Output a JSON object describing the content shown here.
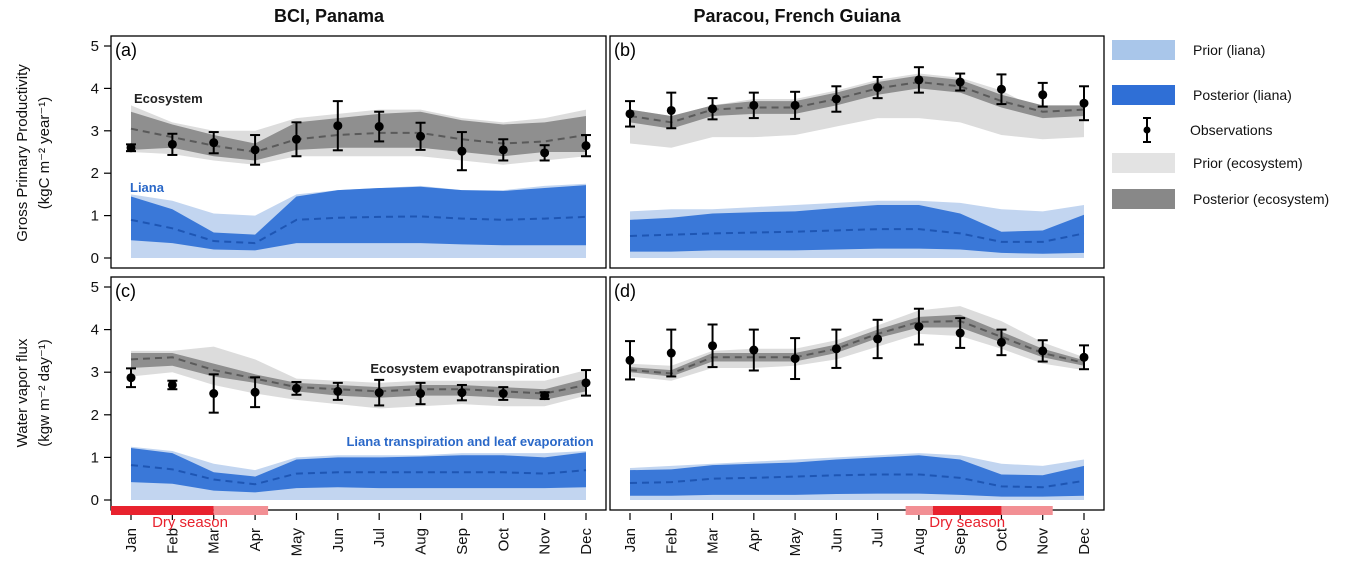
{
  "titles": {
    "left": "BCI, Panama",
    "right": "Paracou, French Guiana"
  },
  "ylabels": {
    "top": {
      "line1": "Gross Primary Productivity",
      "line2": "(kgC m⁻² year⁻¹)"
    },
    "bottom": {
      "line1": "Water vapor flux",
      "line2": "(kgw m⁻² day⁻¹)"
    }
  },
  "months": [
    "Jan",
    "Feb",
    "Mar",
    "Apr",
    "May",
    "Jun",
    "Jul",
    "Aug",
    "Sep",
    "Oct",
    "Nov",
    "Dec"
  ],
  "yticks": [
    "0",
    "1",
    "2",
    "3",
    "4",
    "5"
  ],
  "dry_season_label": "Dry season",
  "legend": [
    {
      "label": "Prior (liana)",
      "color": "#a9c6ea",
      "kind": "fill"
    },
    {
      "label": "Posterior (liana)",
      "color": "#2f6fd6",
      "kind": "fill"
    },
    {
      "label": "Observations",
      "color": "#000000",
      "kind": "errorbar"
    },
    {
      "label": "Prior (ecosystem)",
      "color": "#e3e3e3",
      "kind": "fill"
    },
    {
      "label": "Posterior (ecosystem)",
      "color": "#888888",
      "kind": "fill"
    }
  ],
  "colors": {
    "prior_liana": "#c2d5f0",
    "posterior_liana": "#3a78d8",
    "liana_median": "#1e56b4",
    "prior_eco": "#dcdcdc",
    "posterior_eco": "#8f8f8f",
    "eco_median": "#5a5a5a",
    "obs": "#000000",
    "dry_strong": "#e8222e",
    "dry_light": "#f28f94",
    "liana_text": "#2a68c8"
  },
  "chart_data": [
    {
      "id": "a",
      "panel_label": "(a)",
      "type": "line",
      "site": "BCI, Panama",
      "variable": "GPP",
      "ylim": [
        0,
        5
      ],
      "annotations": [
        {
          "text": "Ecosystem",
          "color": "#222222"
        },
        {
          "text": "Liana",
          "color": "#2a68c8"
        }
      ],
      "obs": {
        "y": [
          2.6,
          2.68,
          2.72,
          2.55,
          2.8,
          3.12,
          3.1,
          2.87,
          2.52,
          2.55,
          2.48,
          2.65
        ],
        "err": [
          0.08,
          0.25,
          0.25,
          0.35,
          0.4,
          0.58,
          0.35,
          0.32,
          0.45,
          0.25,
          0.18,
          0.25
        ]
      },
      "eco_prior": {
        "lo": [
          2.5,
          2.45,
          2.3,
          2.2,
          2.4,
          2.4,
          2.4,
          2.4,
          2.3,
          2.2,
          2.3,
          2.4
        ],
        "hi": [
          3.6,
          3.2,
          3.0,
          3.0,
          3.3,
          3.4,
          3.5,
          3.5,
          3.3,
          3.2,
          3.3,
          3.5
        ]
      },
      "eco_post": {
        "lo": [
          2.55,
          2.6,
          2.4,
          2.3,
          2.55,
          2.6,
          2.6,
          2.6,
          2.5,
          2.4,
          2.5,
          2.5
        ],
        "hi": [
          3.45,
          3.15,
          2.9,
          2.7,
          3.2,
          3.3,
          3.4,
          3.45,
          3.25,
          3.15,
          3.2,
          3.35
        ]
      },
      "eco_median": [
        3.05,
        2.85,
        2.65,
        2.5,
        2.8,
        2.9,
        2.95,
        2.95,
        2.8,
        2.7,
        2.75,
        2.9
      ],
      "liana_prior": {
        "lo": [
          0.0,
          0.0,
          0.0,
          0.0,
          0.0,
          0.0,
          0.0,
          0.0,
          0.0,
          0.0,
          0.0,
          0.0
        ],
        "hi": [
          1.5,
          1.35,
          1.05,
          1.0,
          1.5,
          1.6,
          1.65,
          1.7,
          1.6,
          1.6,
          1.7,
          1.75
        ]
      },
      "liana_post": {
        "lo": [
          0.42,
          0.35,
          0.2,
          0.18,
          0.35,
          0.35,
          0.35,
          0.35,
          0.32,
          0.3,
          0.3,
          0.3
        ],
        "hi": [
          1.45,
          1.15,
          0.6,
          0.55,
          1.45,
          1.6,
          1.65,
          1.68,
          1.6,
          1.58,
          1.65,
          1.72
        ]
      },
      "liana_median": [
        0.9,
        0.7,
        0.4,
        0.35,
        0.9,
        0.95,
        0.97,
        0.98,
        0.93,
        0.9,
        0.93,
        0.97
      ]
    },
    {
      "id": "b",
      "panel_label": "(b)",
      "type": "line",
      "site": "Paracou, French Guiana",
      "variable": "GPP",
      "ylim": [
        0,
        5
      ],
      "annotations": [],
      "obs": {
        "y": [
          3.4,
          3.48,
          3.52,
          3.6,
          3.6,
          3.75,
          4.02,
          4.2,
          4.15,
          3.98,
          3.85,
          3.65
        ],
        "err": [
          0.3,
          0.42,
          0.25,
          0.3,
          0.32,
          0.3,
          0.25,
          0.3,
          0.2,
          0.35,
          0.28,
          0.4
        ]
      },
      "eco_prior": {
        "lo": [
          2.7,
          2.6,
          2.85,
          2.85,
          2.9,
          3.1,
          3.3,
          3.3,
          3.2,
          2.9,
          2.8,
          2.85
        ],
        "hi": [
          3.5,
          3.35,
          3.6,
          3.75,
          3.75,
          3.95,
          4.2,
          4.35,
          4.25,
          3.95,
          3.45,
          3.55
        ]
      },
      "eco_post": {
        "lo": [
          3.2,
          3.05,
          3.35,
          3.4,
          3.4,
          3.6,
          3.85,
          4.0,
          3.9,
          3.55,
          3.3,
          3.35
        ],
        "hi": [
          3.5,
          3.35,
          3.6,
          3.7,
          3.7,
          3.9,
          4.15,
          4.3,
          4.2,
          3.85,
          3.6,
          3.6
        ]
      },
      "eco_median": [
        3.35,
        3.2,
        3.5,
        3.55,
        3.55,
        3.75,
        4.0,
        4.15,
        4.05,
        3.7,
        3.45,
        3.5
      ],
      "liana_prior": {
        "lo": [
          0.0,
          0.0,
          0.0,
          0.0,
          0.0,
          0.0,
          0.0,
          0.0,
          0.0,
          0.0,
          0.0,
          0.0
        ],
        "hi": [
          1.1,
          1.15,
          1.15,
          1.2,
          1.25,
          1.3,
          1.35,
          1.35,
          1.3,
          1.15,
          1.1,
          1.25
        ]
      },
      "liana_post": {
        "lo": [
          0.15,
          0.15,
          0.18,
          0.18,
          0.18,
          0.2,
          0.22,
          0.22,
          0.2,
          0.12,
          0.1,
          0.12
        ],
        "hi": [
          0.9,
          0.95,
          1.05,
          1.08,
          1.1,
          1.18,
          1.25,
          1.25,
          1.05,
          0.62,
          0.65,
          1.02
        ]
      },
      "liana_median": [
        0.52,
        0.55,
        0.58,
        0.6,
        0.62,
        0.65,
        0.68,
        0.68,
        0.58,
        0.38,
        0.38,
        0.58
      ]
    },
    {
      "id": "c",
      "panel_label": "(c)",
      "type": "line",
      "site": "BCI, Panama",
      "variable": "Water vapor flux",
      "ylim": [
        0,
        5
      ],
      "annotations": [
        {
          "text": "Ecosystem evapotranspiration",
          "color": "#222222"
        },
        {
          "text": "Liana transpiration and leaf evaporation",
          "color": "#2a68c8"
        }
      ],
      "obs": {
        "y": [
          2.87,
          2.7,
          2.5,
          2.53,
          2.62,
          2.55,
          2.52,
          2.5,
          2.52,
          2.5,
          2.45,
          2.75
        ],
        "err": [
          0.22,
          0.1,
          0.45,
          0.35,
          0.15,
          0.2,
          0.3,
          0.25,
          0.18,
          0.15,
          0.08,
          0.3
        ]
      },
      "eco_prior": {
        "lo": [
          2.9,
          3.0,
          2.7,
          2.5,
          2.35,
          2.25,
          2.15,
          2.2,
          2.25,
          2.2,
          2.2,
          2.45
        ],
        "hi": [
          3.5,
          3.5,
          3.6,
          3.3,
          2.85,
          2.8,
          2.75,
          2.8,
          2.8,
          2.8,
          2.8,
          3.05
        ]
      },
      "eco_post": {
        "lo": [
          3.1,
          3.15,
          2.9,
          2.75,
          2.55,
          2.45,
          2.4,
          2.45,
          2.45,
          2.4,
          2.35,
          2.55
        ],
        "hi": [
          3.45,
          3.45,
          3.2,
          2.95,
          2.75,
          2.7,
          2.65,
          2.7,
          2.7,
          2.65,
          2.6,
          2.85
        ]
      },
      "eco_median": [
        3.3,
        3.35,
        3.05,
        2.85,
        2.65,
        2.6,
        2.55,
        2.6,
        2.6,
        2.55,
        2.5,
        2.7
      ],
      "liana_prior": {
        "lo": [
          0.0,
          0.0,
          0.0,
          0.0,
          0.0,
          0.0,
          0.0,
          0.0,
          0.0,
          0.0,
          0.0,
          0.0
        ],
        "hi": [
          1.25,
          1.15,
          0.85,
          0.7,
          1.0,
          1.05,
          1.05,
          1.05,
          1.1,
          1.1,
          1.1,
          1.15
        ]
      },
      "liana_post": {
        "lo": [
          0.42,
          0.38,
          0.22,
          0.18,
          0.28,
          0.3,
          0.28,
          0.28,
          0.28,
          0.28,
          0.28,
          0.3
        ],
        "hi": [
          1.22,
          1.1,
          0.65,
          0.55,
          0.95,
          1.0,
          1.0,
          1.02,
          1.05,
          1.05,
          1.0,
          1.12
        ]
      },
      "liana_median": [
        0.82,
        0.72,
        0.48,
        0.37,
        0.62,
        0.65,
        0.65,
        0.65,
        0.65,
        0.65,
        0.62,
        0.7
      ]
    },
    {
      "id": "d",
      "panel_label": "(d)",
      "type": "line",
      "site": "Paracou, French Guiana",
      "variable": "Water vapor flux",
      "ylim": [
        0,
        5
      ],
      "annotations": [],
      "obs": {
        "y": [
          3.28,
          3.45,
          3.62,
          3.52,
          3.32,
          3.55,
          3.78,
          4.07,
          3.92,
          3.7,
          3.5,
          3.35
        ],
        "err": [
          0.45,
          0.55,
          0.5,
          0.48,
          0.48,
          0.45,
          0.45,
          0.42,
          0.35,
          0.3,
          0.25,
          0.28
        ]
      },
      "eco_prior": {
        "lo": [
          2.9,
          2.8,
          3.1,
          3.1,
          3.15,
          3.3,
          3.6,
          3.9,
          3.85,
          3.55,
          3.2,
          3.05
        ],
        "hi": [
          3.2,
          3.15,
          3.5,
          3.55,
          3.55,
          3.75,
          4.1,
          4.45,
          4.55,
          4.2,
          3.7,
          3.35
        ]
      },
      "eco_post": {
        "lo": [
          3.0,
          2.9,
          3.25,
          3.25,
          3.25,
          3.45,
          3.8,
          4.05,
          4.05,
          3.7,
          3.35,
          3.15
        ],
        "hi": [
          3.12,
          3.05,
          3.45,
          3.45,
          3.45,
          3.65,
          4.0,
          4.3,
          4.35,
          3.95,
          3.55,
          3.28
        ]
      },
      "eco_median": [
        3.05,
        2.97,
        3.35,
        3.35,
        3.35,
        3.55,
        3.9,
        4.18,
        4.2,
        3.83,
        3.45,
        3.22
      ],
      "liana_prior": {
        "lo": [
          0.0,
          0.0,
          0.0,
          0.0,
          0.0,
          0.0,
          0.0,
          0.0,
          0.0,
          0.0,
          0.0,
          0.0
        ],
        "hi": [
          0.75,
          0.8,
          0.85,
          0.9,
          0.95,
          1.0,
          1.05,
          1.1,
          1.05,
          0.85,
          0.8,
          0.95
        ]
      },
      "liana_post": {
        "lo": [
          0.1,
          0.1,
          0.12,
          0.12,
          0.12,
          0.14,
          0.15,
          0.15,
          0.12,
          0.08,
          0.08,
          0.1
        ],
        "hi": [
          0.7,
          0.72,
          0.82,
          0.85,
          0.88,
          0.95,
          1.0,
          1.05,
          0.95,
          0.6,
          0.58,
          0.8
        ]
      },
      "liana_median": [
        0.4,
        0.42,
        0.5,
        0.52,
        0.55,
        0.58,
        0.6,
        0.6,
        0.52,
        0.32,
        0.3,
        0.45
      ]
    }
  ],
  "dry_season": {
    "left": {
      "strong": [
        "Jan",
        "Mar"
      ],
      "light": [
        "Mar",
        "Apr"
      ]
    },
    "right": {
      "light_a": [
        "Jul",
        "Aug"
      ],
      "strong": [
        "Aug",
        "Oct"
      ],
      "light_b": [
        "Oct",
        "Nov"
      ]
    }
  }
}
